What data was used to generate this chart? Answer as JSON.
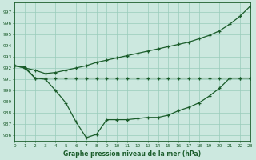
{
  "background_color": "#cce8df",
  "grid_color": "#99ccbb",
  "line_color": "#1a5c2a",
  "xlabel": "Graphe pression niveau de la mer (hPa)",
  "xlim": [
    0,
    23
  ],
  "ylim": [
    985.5,
    997.8
  ],
  "ytick_min": 986,
  "ytick_max": 997,
  "line1_y": [
    992.2,
    992.0,
    991.1,
    991.0,
    990.0,
    988.9,
    987.2,
    985.8,
    986.1,
    987.4,
    987.4,
    987.4,
    987.5,
    987.6,
    987.6,
    987.8,
    988.2,
    988.5,
    988.9,
    989.5,
    990.2,
    991.1,
    991.1,
    991.1
  ],
  "line2_y": [
    992.2,
    992.1,
    991.1,
    991.1,
    991.1,
    991.1,
    991.1,
    991.1,
    991.1,
    991.1,
    991.1,
    991.1,
    991.1,
    991.1,
    991.1,
    991.1,
    991.1,
    991.1,
    991.1,
    991.1,
    991.1,
    991.1,
    991.1,
    991.1
  ],
  "line3_y": [
    992.2,
    992.0,
    991.8,
    991.5,
    991.6,
    991.8,
    992.0,
    992.2,
    992.5,
    992.7,
    992.9,
    993.1,
    993.3,
    993.5,
    993.7,
    993.9,
    994.1,
    994.3,
    994.6,
    994.9,
    995.3,
    995.9,
    996.6,
    997.5
  ]
}
